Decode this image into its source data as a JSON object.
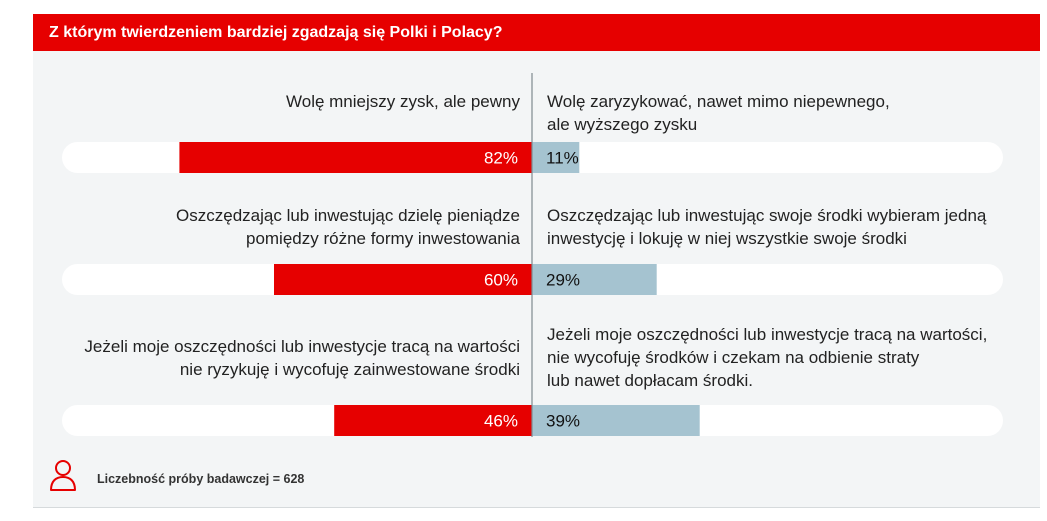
{
  "title": "Z którym twierdzeniem bardziej zgadzają się Polki i Polacy?",
  "colors": {
    "accent": "#e60000",
    "right_bar": "#a5c3d0",
    "track": "#ffffff",
    "panel": "#f3f5f6",
    "divider": "#7f8a90"
  },
  "footer": {
    "icon": "person-outline-icon",
    "text": "Liczebność próby badawczej = 628"
  },
  "chart_data": {
    "type": "bar",
    "orientation": "horizontal-diverging",
    "value_unit": "%",
    "categories": [
      {
        "left_statement": [
          "Wolę mniejszy zysk, ale pewny"
        ],
        "right_statement": [
          "Wolę zaryzykować, nawet mimo niepewnego,",
          "ale wyższego  zysku"
        ]
      },
      {
        "left_statement": [
          "Oszczędzając lub inwestując dzielę pieniądze",
          "pomiędzy różne formy inwestowania"
        ],
        "right_statement": [
          "Oszczędzając lub inwestując swoje środki wybieram jedną",
          "inwestycję i lokuję w niej wszystkie swoje środki"
        ]
      },
      {
        "left_statement": [
          "Jeżeli moje oszczędności lub inwestycje tracą na wartości",
          "nie ryzykuję i wycofuję zainwestowane środki"
        ],
        "right_statement": [
          "Jeżeli moje oszczędności lub inwestycje tracą na wartości,",
          "nie wycofuję środków i czekam na odbienie straty",
          "lub nawet dopłacam środki."
        ]
      }
    ],
    "series": [
      {
        "side": "left",
        "color": "#e60000",
        "values": [
          82,
          60,
          46
        ],
        "labels": [
          "82%",
          "60%",
          "46%"
        ]
      },
      {
        "side": "right",
        "color": "#a5c3d0",
        "values": [
          11,
          29,
          39
        ],
        "labels": [
          "11%",
          "29%",
          "39%"
        ]
      }
    ]
  }
}
